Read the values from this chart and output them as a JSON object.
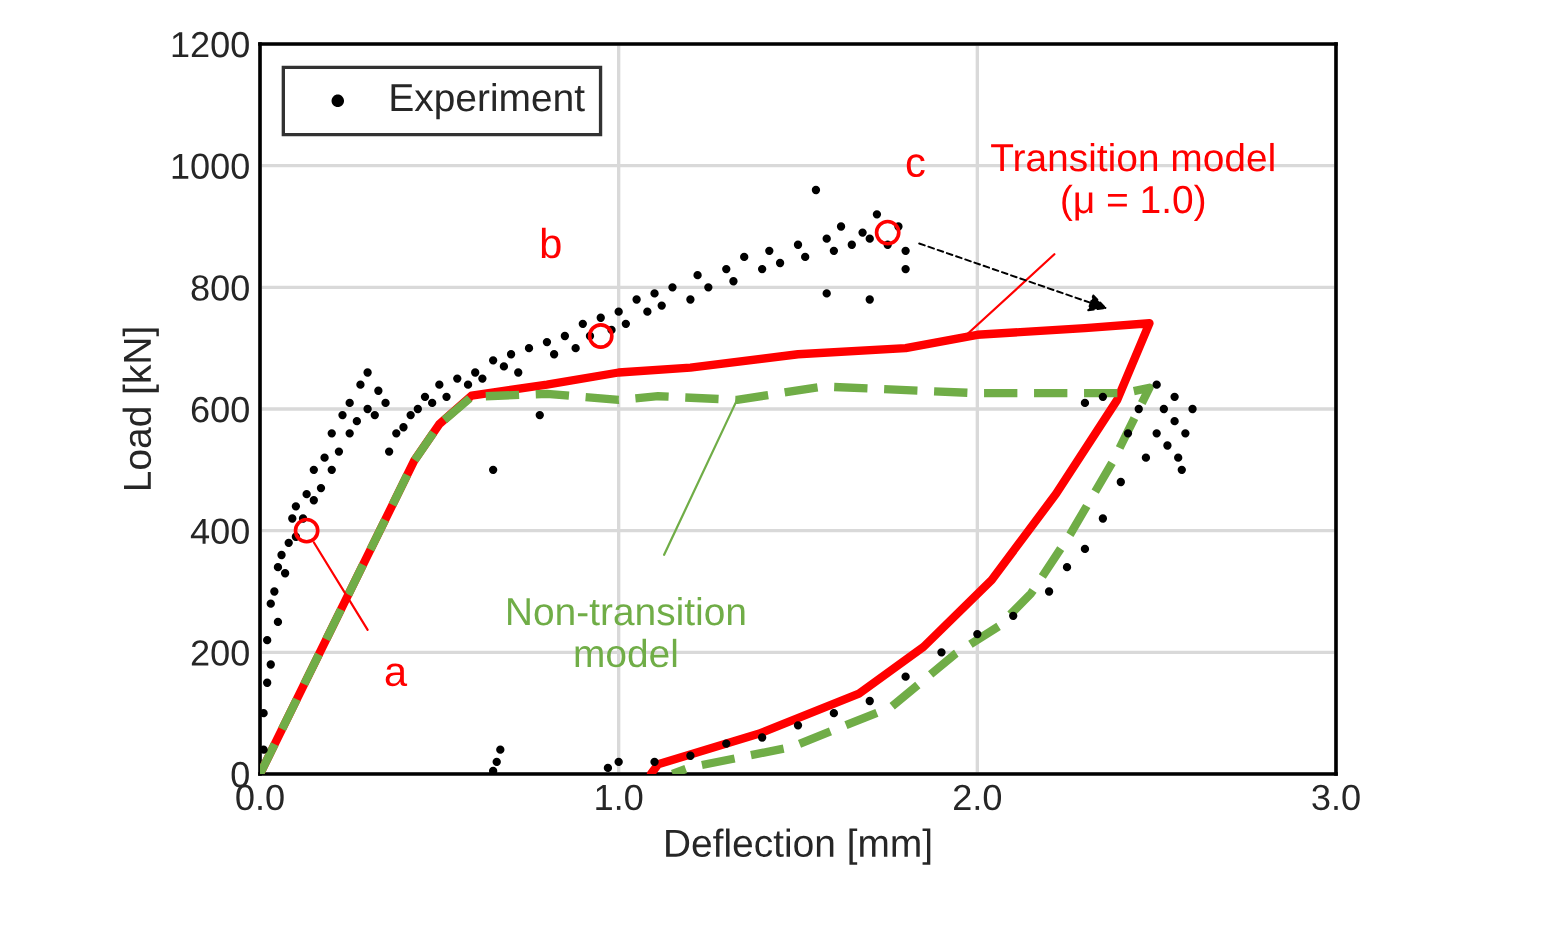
{
  "chart_data": {
    "type": "scatter",
    "xlabel": "Deflection [mm]",
    "ylabel": "Load [kN]",
    "xlim": [
      0,
      3.0
    ],
    "ylim": [
      0,
      1200
    ],
    "xticks": [
      {
        "value": 0,
        "label": "0.0"
      },
      {
        "value": 1,
        "label": "1.0"
      },
      {
        "value": 2,
        "label": "2.0"
      },
      {
        "value": 3,
        "label": "3.0"
      }
    ],
    "yticks": [
      0,
      200,
      400,
      600,
      800,
      1000,
      1200
    ],
    "grid": true,
    "legend": "top left",
    "series": [
      {
        "name": "Experiment",
        "color": "#000000",
        "marker": "circle",
        "x": [
          0.01,
          0.01,
          0.02,
          0.02,
          0.03,
          0.03,
          0.04,
          0.05,
          0.05,
          0.06,
          0.07,
          0.08,
          0.09,
          0.1,
          0.1,
          0.12,
          0.13,
          0.15,
          0.15,
          0.17,
          0.18,
          0.2,
          0.2,
          0.22,
          0.23,
          0.25,
          0.25,
          0.27,
          0.28,
          0.3,
          0.3,
          0.32,
          0.33,
          0.35,
          0.36,
          0.38,
          0.4,
          0.42,
          0.44,
          0.46,
          0.48,
          0.5,
          0.52,
          0.55,
          0.58,
          0.6,
          0.62,
          0.65,
          0.65,
          0.68,
          0.7,
          0.72,
          0.75,
          0.78,
          0.8,
          0.82,
          0.85,
          0.88,
          0.9,
          0.92,
          0.95,
          0.98,
          1.0,
          1.02,
          1.05,
          1.08,
          1.1,
          1.12,
          1.15,
          1.2,
          1.22,
          1.25,
          1.3,
          1.32,
          1.35,
          1.4,
          1.42,
          1.45,
          1.5,
          1.52,
          1.55,
          1.58,
          1.6,
          1.62,
          1.65,
          1.68,
          1.7,
          1.72,
          1.75,
          1.78,
          1.8,
          1.8,
          1.7,
          1.58,
          0.66,
          0.67,
          0.65,
          0.97,
          1.0,
          1.1,
          1.2,
          1.3,
          1.4,
          1.5,
          1.6,
          1.7,
          1.8,
          1.9,
          2.0,
          2.1,
          2.2,
          2.25,
          2.3,
          2.35,
          2.4,
          2.42,
          2.45,
          2.47,
          2.5,
          2.5,
          2.52,
          2.53,
          2.55,
          2.55,
          2.56,
          2.57,
          2.58,
          2.6,
          2.35,
          2.3
        ],
        "values": [
          40,
          100,
          150,
          220,
          180,
          280,
          300,
          250,
          340,
          360,
          330,
          380,
          420,
          390,
          440,
          420,
          460,
          450,
          500,
          470,
          520,
          500,
          560,
          530,
          590,
          560,
          610,
          580,
          640,
          600,
          660,
          590,
          630,
          610,
          530,
          560,
          570,
          590,
          600,
          620,
          610,
          640,
          620,
          650,
          640,
          660,
          650,
          500,
          680,
          670,
          690,
          660,
          700,
          590,
          710,
          690,
          720,
          700,
          740,
          720,
          750,
          730,
          760,
          740,
          780,
          760,
          790,
          770,
          800,
          780,
          820,
          800,
          830,
          810,
          850,
          830,
          860,
          840,
          870,
          850,
          960,
          880,
          860,
          900,
          870,
          890,
          880,
          920,
          870,
          900,
          860,
          830,
          780,
          790,
          20,
          40,
          5,
          10,
          20,
          20,
          30,
          50,
          60,
          80,
          100,
          120,
          160,
          200,
          230,
          260,
          300,
          340,
          370,
          420,
          480,
          560,
          600,
          520,
          640,
          560,
          600,
          540,
          620,
          580,
          520,
          500,
          560,
          600,
          620,
          610
        ]
      },
      {
        "name": "Transition model\n(μ = 1.0)",
        "type": "line",
        "color": "#ff0000",
        "line_style": "solid",
        "marker": "none",
        "x": [
          0,
          0.43,
          0.5,
          0.59,
          0.8,
          1.0,
          1.2,
          1.5,
          1.8,
          2.0,
          2.3,
          2.48,
          2.39,
          2.22,
          2.04,
          1.85,
          1.67,
          1.39,
          1.11,
          1.09
        ],
        "values": [
          0,
          515,
          575,
          622,
          640,
          660,
          668,
          690,
          700,
          722,
          733,
          741,
          615,
          461,
          319,
          209,
          132,
          66,
          16,
          0
        ]
      },
      {
        "name": "Non-transition\nmodel",
        "type": "line",
        "color": "#70ad47",
        "line_style": "dashed",
        "marker": "none",
        "x": [
          0,
          0.43,
          0.5,
          0.59,
          0.8,
          1.0,
          1.11,
          1.33,
          1.57,
          2.0,
          2.41,
          2.48,
          2.38,
          2.26,
          2.15,
          2.06,
          1.94,
          1.76,
          1.48,
          1.2,
          1.15
        ],
        "values": [
          0,
          515,
          575,
          620,
          625,
          615,
          621,
          615,
          637,
          626,
          626,
          635,
          516,
          395,
          297,
          243,
          198,
          110,
          44,
          11,
          0
        ]
      }
    ],
    "annotations": [
      {
        "text": "a",
        "x": 0.13,
        "y": 400
      },
      {
        "text": "b",
        "x": 0.95,
        "y": 720
      },
      {
        "text": "c",
        "x": 1.75,
        "y": 890
      }
    ]
  }
}
